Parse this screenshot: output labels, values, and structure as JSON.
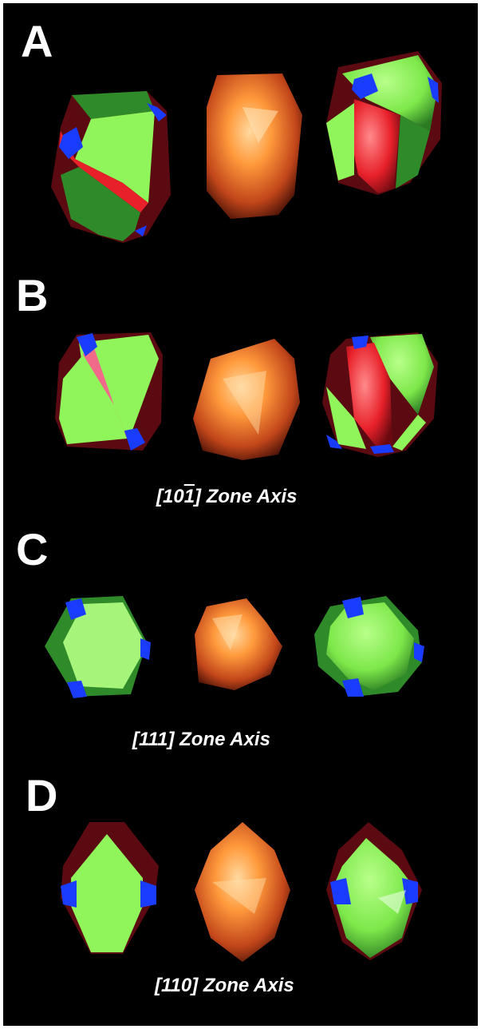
{
  "panels": [
    {
      "letter": "A",
      "zone_label": ""
    },
    {
      "letter": "B",
      "zone_label": {
        "prefix": "[10",
        "overbar": "1",
        "suffix": "] Zone Axis"
      }
    },
    {
      "letter": "C",
      "zone_label": "[111] Zone Axis"
    },
    {
      "letter": "D",
      "zone_label": "[110] Zone Axis"
    }
  ],
  "colors": {
    "background": "#000000",
    "facet_green_light": "#8ff55a",
    "facet_green_dark": "#2f8a2a",
    "facet_red": "#e8202a",
    "facet_pink": "#f06a8a",
    "facet_blue": "#1a3cff",
    "shadow_red": "#5a0a10",
    "particle_orange": "#ff8a2a"
  }
}
